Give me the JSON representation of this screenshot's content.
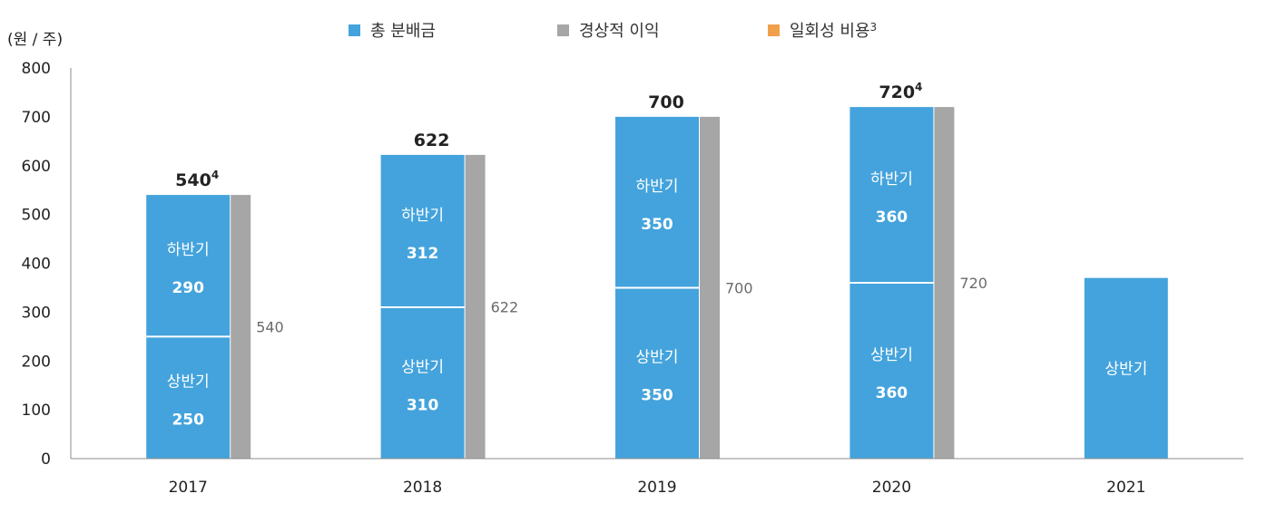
{
  "chart_data": {
    "type": "bar",
    "unit_label": "(원 / 주)",
    "categories": [
      "2017",
      "2018",
      "2019",
      "2020",
      "2021"
    ],
    "ylim": [
      0,
      800
    ],
    "yticks": [
      0,
      100,
      200,
      300,
      400,
      500,
      600,
      700,
      800
    ],
    "legend": {
      "placement": "top",
      "items": [
        {
          "name": "총 분배금",
          "color": "#44a3dc"
        },
        {
          "name": "경상적 이익",
          "color": "#a6a6a6"
        },
        {
          "name": "일회성 비용",
          "superscript": "3",
          "color": "#f0a04b"
        }
      ]
    },
    "series": [
      {
        "name": "상반기",
        "stack": "총 분배금",
        "color": "#44a3dc",
        "values": [
          250,
          310,
          350,
          360,
          370
        ],
        "labels": [
          "250",
          "310",
          "350",
          "360",
          ""
        ]
      },
      {
        "name": "하반기",
        "stack": "총 분배금",
        "color": "#44a3dc",
        "values": [
          290,
          312,
          350,
          360,
          null
        ],
        "labels": [
          "290",
          "312",
          "350",
          "360",
          ""
        ]
      },
      {
        "name": "경상적 이익",
        "color": "#a6a6a6",
        "values": [
          540,
          622,
          700,
          720,
          null
        ],
        "labels": [
          "540",
          "622",
          "700",
          "720",
          ""
        ]
      }
    ],
    "totals": [
      {
        "value": "540",
        "sup": "4"
      },
      {
        "value": "622",
        "sup": ""
      },
      {
        "value": "700",
        "sup": ""
      },
      {
        "value": "720",
        "sup": "4"
      },
      {
        "value": "",
        "sup": ""
      }
    ]
  }
}
